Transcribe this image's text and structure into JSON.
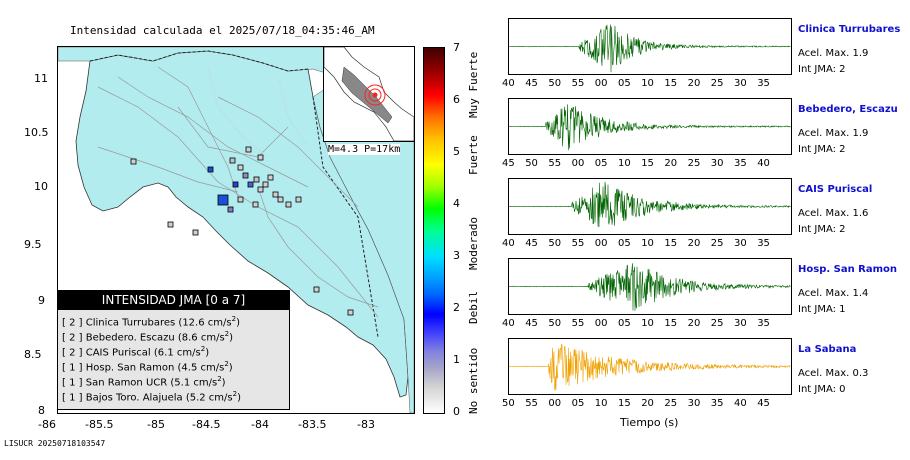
{
  "map": {
    "title": "Intensidad calculada el 2025/07/18_04:35:46_AM",
    "lon_ticks": [
      "-86",
      "-85.5",
      "-85",
      "-84.5",
      "-84",
      "-83.5",
      "-83"
    ],
    "lat_ticks": [
      "11",
      "10.5",
      "10",
      "9.5",
      "9",
      "8.5",
      "8"
    ],
    "inset_label": "M=4.3 P=17km",
    "colors": {
      "land": "#b2ecee",
      "sea": "#ffffff",
      "epicenter": "#ff2020",
      "station": "#1a4fd6"
    }
  },
  "legend": {
    "title": "INTENSIDAD JMA [0 a 7]",
    "rows": [
      {
        "jma": "[ 2 ]",
        "station": "Clinica Turrubares",
        "accel": "(12.6 cm/s",
        "sup": "2",
        "close": ")"
      },
      {
        "jma": "[ 2 ]",
        "station": "Bebedero. Escazu",
        "accel": "(8.6 cm/s",
        "sup": "2",
        "close": ")"
      },
      {
        "jma": "[ 2 ]",
        "station": "CAIS Puriscal",
        "accel": "(6.1 cm/s",
        "sup": "2",
        "close": ")"
      },
      {
        "jma": "[ 1 ]",
        "station": "Hosp. San Ramon",
        "accel": "(4.5 cm/s",
        "sup": "2",
        "close": ")"
      },
      {
        "jma": "[ 1 ]",
        "station": "San Ramon UCR",
        "accel": "(5.1 cm/s",
        "sup": "2",
        "close": ")"
      },
      {
        "jma": "[ 1 ]",
        "station": "Bajos Toro. Alajuela",
        "accel": "(5.2 cm/s",
        "sup": "2",
        "close": ")"
      }
    ]
  },
  "colorbar": {
    "ticks": [
      "0",
      "1",
      "2",
      "3",
      "4",
      "5",
      "6",
      "7"
    ],
    "categories": [
      "No sentido",
      "Debil",
      "Moderado",
      "Fuerte",
      "Muy Fuerte"
    ]
  },
  "traces": [
    {
      "name": "Clinica Turrubares",
      "accel": "Acel. Max. 1.9",
      "jma": "Int JMA: 2",
      "color": "#006400",
      "ticks": [
        "40",
        "45",
        "50",
        "55",
        "00",
        "05",
        "10",
        "15",
        "20",
        "25",
        "30",
        "35"
      ],
      "onset": 0.245,
      "peak": 0.36,
      "decay": 0.18
    },
    {
      "name": "Bebedero, Escazu",
      "accel": "Acel. Max. 1.9",
      "jma": "Int JMA: 2",
      "color": "#006400",
      "ticks": [
        "45",
        "50",
        "55",
        "00",
        "05",
        "10",
        "15",
        "20",
        "25",
        "30",
        "35",
        "40"
      ],
      "onset": 0.13,
      "peak": 0.21,
      "decay": 0.25
    },
    {
      "name": "CAIS Puriscal",
      "accel": "Acel. Max. 1.6",
      "jma": "Int JMA: 2",
      "color": "#006400",
      "ticks": [
        "40",
        "45",
        "50",
        "55",
        "00",
        "05",
        "10",
        "15",
        "20",
        "25",
        "30",
        "35"
      ],
      "onset": 0.22,
      "peak": 0.33,
      "decay": 0.3
    },
    {
      "name": "Hosp. San Ramon",
      "accel": "Acel. Max. 1.4",
      "jma": "Int JMA: 1",
      "color": "#006400",
      "ticks": [
        "40",
        "45",
        "50",
        "55",
        "00",
        "05",
        "10",
        "15",
        "20",
        "25",
        "30",
        "35"
      ],
      "onset": 0.28,
      "peak": 0.44,
      "decay": 0.3
    },
    {
      "name": "La Sabana",
      "accel": "Acel. Max. 0.3",
      "jma": "Int JMA: 0",
      "color": "#f0a000",
      "ticks": [
        "50",
        "55",
        "00",
        "05",
        "10",
        "15",
        "20",
        "25",
        "30",
        "35",
        "40",
        "45"
      ],
      "onset": 0.135,
      "peak": 0.16,
      "decay": 0.45
    }
  ],
  "time_axis_label": "Tiempo (s)",
  "footer": "LISUCR 20250718103547"
}
